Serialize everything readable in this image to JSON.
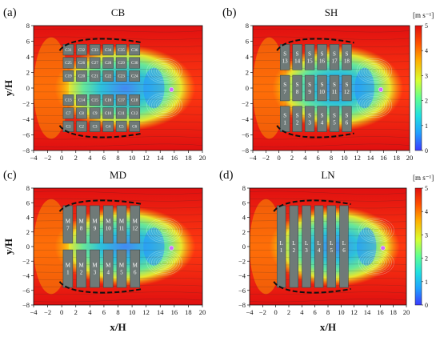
{
  "chart_data": [
    {
      "type": "heatmap",
      "panel_label": "(a)",
      "title": "CB",
      "xlabel": "",
      "ylabel": "y/H",
      "xlim": [
        -4,
        20
      ],
      "ylim": [
        -8,
        8
      ],
      "x_ticks": [
        "−4",
        "−2",
        "0",
        "2",
        "4",
        "6",
        "8",
        "10",
        "12",
        "14",
        "16",
        "18",
        "20"
      ],
      "y_ticks": [
        "8",
        "6",
        "4",
        "2",
        "0",
        "−2",
        "−4",
        "−6",
        "−8"
      ],
      "grid_spec": {
        "x0": 0.2,
        "x1": 11.1,
        "y0": -5.6,
        "y1": 5.6,
        "cols": 6,
        "rows": 6,
        "gap_x": 0.4,
        "gap_y": 0.3,
        "center_gap": 1.4
      },
      "block_labels": [
        [
          "C31",
          "C32",
          "C33",
          "C34",
          "C35",
          "C36"
        ],
        [
          "C25",
          "C26",
          "C27",
          "C28",
          "C29",
          "C30"
        ],
        [
          "C19",
          "C20",
          "C21",
          "C22",
          "C23",
          "C24"
        ],
        [
          "C13",
          "C14",
          "C15",
          "C16",
          "C17",
          "C18"
        ],
        [
          "C7",
          "C8",
          "C9",
          "C10",
          "C11",
          "C12"
        ],
        [
          "C1",
          "C2",
          "C3",
          "C4",
          "C5",
          "C6"
        ]
      ],
      "vortex_center": [
        15.6,
        -0.2
      ]
    },
    {
      "type": "heatmap",
      "panel_label": "(b)",
      "title": "SH",
      "xlabel": "",
      "ylabel": "",
      "xlim": [
        -4,
        20
      ],
      "ylim": [
        -8,
        8
      ],
      "x_ticks": [
        "−4",
        "−2",
        "0",
        "2",
        "4",
        "6",
        "8",
        "10",
        "12",
        "14",
        "16",
        "18",
        "20"
      ],
      "y_ticks": [
        "8",
        "6",
        "4",
        "2",
        "0",
        "−2",
        "−4",
        "−6",
        "−8"
      ],
      "grid_spec": {
        "x0": 0.2,
        "x1": 11.1,
        "y0": -5.6,
        "y1": 5.6,
        "cols": 6,
        "rows": 3,
        "gap_x": 0.45,
        "gap_y": 0.7,
        "center_gap": 0
      },
      "block_labels": [
        [
          "S 13",
          "S 14",
          "S 15",
          "S 16",
          "S 17",
          "S 18"
        ],
        [
          "S 7",
          "S 8",
          "S 9",
          "S 10",
          "S 11",
          "S 12"
        ],
        [
          "S 1",
          "S 2",
          "S 3",
          "S 4",
          "S 5",
          "S 6"
        ]
      ],
      "vortex_center": [
        15.6,
        -0.2
      ]
    },
    {
      "type": "heatmap",
      "panel_label": "(c)",
      "title": "MD",
      "xlabel": "x/H",
      "ylabel": "y/H",
      "xlim": [
        -4,
        20
      ],
      "ylim": [
        -8,
        8
      ],
      "x_ticks": [
        "−4",
        "−2",
        "0",
        "2",
        "4",
        "6",
        "8",
        "10",
        "12",
        "14",
        "16",
        "18",
        "20"
      ],
      "y_ticks": [
        "8",
        "6",
        "4",
        "2",
        "0",
        "−2",
        "−4",
        "−6",
        "−8"
      ],
      "grid_spec": {
        "x0": 0.2,
        "x1": 11.1,
        "y0": -5.6,
        "y1": 5.6,
        "cols": 6,
        "rows": 2,
        "gap_x": 0.55,
        "gap_y": 0,
        "center_gap": 0.9
      },
      "block_labels": [
        [
          "M 7",
          "M 8",
          "M 9",
          "M 10",
          "M 11",
          "M 12"
        ],
        [
          "M 1",
          "M 2",
          "M 3",
          "M 4",
          "M 5",
          "M 6"
        ]
      ],
      "vortex_center": [
        15.6,
        -0.2
      ]
    },
    {
      "type": "heatmap",
      "panel_label": "(d)",
      "title": "LN",
      "xlabel": "x/H",
      "ylabel": "",
      "xlim": [
        -4,
        20
      ],
      "ylim": [
        -8,
        8
      ],
      "x_ticks": [
        "−4",
        "−2",
        "0",
        "2",
        "4",
        "6",
        "8",
        "10",
        "12",
        "14",
        "16",
        "18",
        "20"
      ],
      "y_ticks": [
        "8",
        "6",
        "4",
        "2",
        "0",
        "−2",
        "−4",
        "−6",
        "−8"
      ],
      "grid_spec": {
        "x0": 0.2,
        "x1": 11.1,
        "y0": -5.6,
        "y1": 5.6,
        "cols": 6,
        "rows": 1,
        "gap_x": 0.6,
        "gap_y": 0,
        "center_gap": 0
      },
      "block_labels": [
        [
          "L 1",
          "L 2",
          "L 3",
          "L 4",
          "L 5",
          "L 6"
        ]
      ],
      "vortex_center": [
        16.4,
        -0.2
      ]
    }
  ],
  "colorbar": {
    "unit_label": "[m s⁻¹]",
    "range": [
      0,
      5
    ],
    "ticks": [
      "5",
      "4",
      "3",
      "2",
      "1",
      "0"
    ],
    "colors": [
      "#3a3aff",
      "#20a0ff",
      "#20e0e0",
      "#60ff90",
      "#d8ff30",
      "#ffb000",
      "#ff5000",
      "#e01010"
    ]
  }
}
